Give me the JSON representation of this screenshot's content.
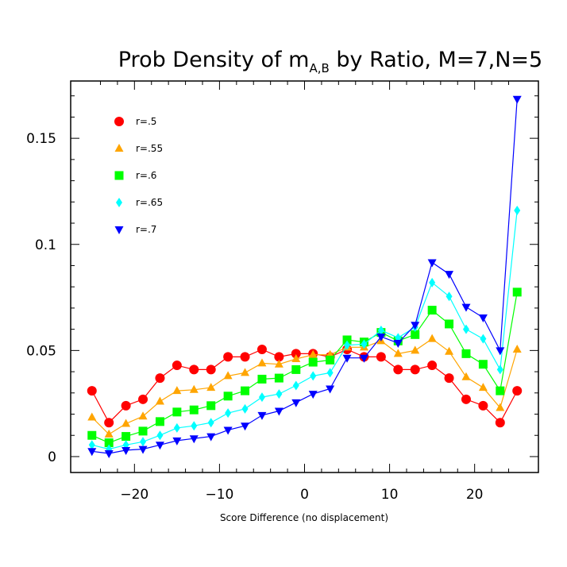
{
  "chart_data": {
    "type": "line",
    "title": "Prob Density of m",
    "title_subscript": "A,B",
    "title_suffix": " by Ratio, M=7,N=5",
    "xlabel": "Score Difference (no displacement)",
    "ylabel": "",
    "xlim": [
      -27.5,
      27.5
    ],
    "ylim": [
      -0.0075,
      0.177
    ],
    "xticks": [
      -20,
      -10,
      0,
      10,
      20
    ],
    "xtick_labels": [
      "−20",
      "−10",
      "0",
      "10",
      "20"
    ],
    "yticks": [
      0,
      0.05,
      0.1,
      0.15
    ],
    "ytick_labels": [
      "0",
      "0.05",
      "0.1",
      "0.15"
    ],
    "legend_position": "top-left",
    "x": [
      -25,
      -23,
      -21,
      -19,
      -17,
      -15,
      -13,
      -11,
      -9,
      -7,
      -5,
      -3,
      -1,
      1,
      3,
      5,
      7,
      9,
      11,
      13,
      15,
      17,
      19,
      21,
      23,
      25
    ],
    "series": [
      {
        "name": "r=.5",
        "color": "#ff0000",
        "marker": "circle",
        "values": [
          0.031,
          0.016,
          0.024,
          0.027,
          0.037,
          0.043,
          0.041,
          0.041,
          0.047,
          0.047,
          0.0505,
          0.047,
          0.0485,
          0.0485,
          0.047,
          0.0505,
          0.047,
          0.047,
          0.041,
          0.041,
          0.043,
          0.037,
          0.027,
          0.024,
          0.016,
          0.031
        ]
      },
      {
        "name": "r=.55",
        "color": "#ffa500",
        "marker": "triangle-up",
        "values": [
          0.0185,
          0.0105,
          0.0155,
          0.019,
          0.026,
          0.031,
          0.0315,
          0.0325,
          0.038,
          0.0395,
          0.044,
          0.0435,
          0.046,
          0.048,
          0.048,
          0.0515,
          0.0515,
          0.0545,
          0.0485,
          0.05,
          0.0555,
          0.0495,
          0.0375,
          0.0325,
          0.023,
          0.0505
        ]
      },
      {
        "name": "r=.6",
        "color": "#00ff00",
        "marker": "square",
        "values": [
          0.01,
          0.0065,
          0.0095,
          0.012,
          0.0165,
          0.021,
          0.022,
          0.024,
          0.0285,
          0.031,
          0.0365,
          0.037,
          0.041,
          0.0445,
          0.0455,
          0.055,
          0.054,
          0.0585,
          0.0545,
          0.0575,
          0.069,
          0.0625,
          0.0485,
          0.0435,
          0.031,
          0.0775
        ]
      },
      {
        "name": "r=.65",
        "color": "#00ffff",
        "marker": "diamond",
        "values": [
          0.0055,
          0.0035,
          0.0055,
          0.007,
          0.01,
          0.0135,
          0.0145,
          0.016,
          0.0205,
          0.0225,
          0.028,
          0.0295,
          0.0335,
          0.038,
          0.0395,
          0.0525,
          0.053,
          0.0595,
          0.056,
          0.061,
          0.082,
          0.0755,
          0.06,
          0.0555,
          0.041,
          0.116
        ]
      },
      {
        "name": "r=.7",
        "color": "#0000ff",
        "marker": "triangle-down",
        "values": [
          0.0025,
          0.0015,
          0.003,
          0.0035,
          0.0055,
          0.0075,
          0.0085,
          0.0095,
          0.0125,
          0.0145,
          0.0195,
          0.0215,
          0.0255,
          0.0295,
          0.032,
          0.0465,
          0.0465,
          0.0565,
          0.0535,
          0.062,
          0.0915,
          0.086,
          0.0705,
          0.0655,
          0.05,
          0.1685
        ]
      }
    ]
  }
}
